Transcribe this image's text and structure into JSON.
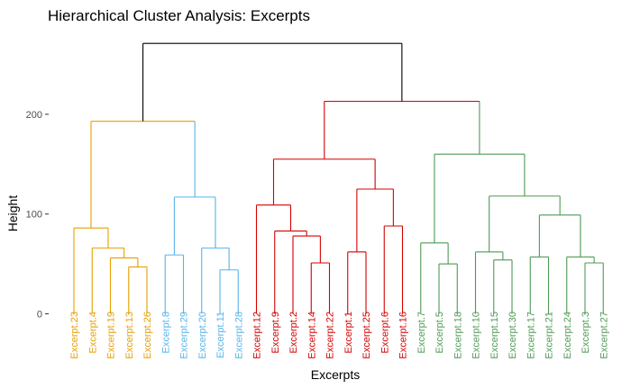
{
  "chart_data": {
    "type": "dendrogram",
    "title": "Hierarchical Cluster Analysis: Excerpts",
    "xlabel": "Excerpts",
    "ylabel": "Height",
    "ylim": [
      0,
      275
    ],
    "yticks": [
      0,
      100,
      200
    ],
    "grid": false,
    "legend": "none",
    "root_color": "#000000",
    "leaves": [
      "Excerpt.23",
      "Excerpt.4",
      "Excerpt.19",
      "Excerpt.13",
      "Excerpt.26",
      "Excerpt.8",
      "Excerpt.29",
      "Excerpt.20",
      "Excerpt.11",
      "Excerpt.28",
      "Excerpt.12",
      "Excerpt.9",
      "Excerpt.2",
      "Excerpt.14",
      "Excerpt.22",
      "Excerpt.1",
      "Excerpt.25",
      "Excerpt.6",
      "Excerpt.16",
      "Excerpt.7",
      "Excerpt.5",
      "Excerpt.18",
      "Excerpt.10",
      "Excerpt.15",
      "Excerpt.30",
      "Excerpt.17",
      "Excerpt.21",
      "Excerpt.24",
      "Excerpt.3",
      "Excerpt.27"
    ],
    "clusters": [
      {
        "color": "#e69f00",
        "leaves": [
          "Excerpt.23",
          "Excerpt.4",
          "Excerpt.19",
          "Excerpt.13",
          "Excerpt.26"
        ]
      },
      {
        "color": "#56b4e9",
        "leaves": [
          "Excerpt.8",
          "Excerpt.29",
          "Excerpt.20",
          "Excerpt.11",
          "Excerpt.28"
        ]
      },
      {
        "color": "#d40000",
        "leaves": [
          "Excerpt.12",
          "Excerpt.9",
          "Excerpt.2",
          "Excerpt.14",
          "Excerpt.22",
          "Excerpt.1",
          "Excerpt.25",
          "Excerpt.6",
          "Excerpt.16"
        ]
      },
      {
        "color": "#4e9a54",
        "leaves": [
          "Excerpt.7",
          "Excerpt.5",
          "Excerpt.18",
          "Excerpt.10",
          "Excerpt.15",
          "Excerpt.30",
          "Excerpt.17",
          "Excerpt.21",
          "Excerpt.24",
          "Excerpt.3",
          "Excerpt.27"
        ]
      }
    ],
    "merges": [
      {
        "id": "m1",
        "left": "Excerpt.13",
        "right": "Excerpt.26",
        "height": 47,
        "color": "#e69f00"
      },
      {
        "id": "m2",
        "left": "Excerpt.19",
        "right": "m1",
        "height": 56,
        "color": "#e69f00"
      },
      {
        "id": "m3",
        "left": "Excerpt.4",
        "right": "m2",
        "height": 66,
        "color": "#e69f00"
      },
      {
        "id": "m4",
        "left": "Excerpt.23",
        "right": "m3",
        "height": 86,
        "color": "#e69f00"
      },
      {
        "id": "m5",
        "left": "Excerpt.8",
        "right": "Excerpt.29",
        "height": 59,
        "color": "#56b4e9"
      },
      {
        "id": "m6",
        "left": "Excerpt.11",
        "right": "Excerpt.28",
        "height": 44,
        "color": "#56b4e9"
      },
      {
        "id": "m7",
        "left": "Excerpt.20",
        "right": "m6",
        "height": 66,
        "color": "#56b4e9"
      },
      {
        "id": "m8",
        "left": "m5",
        "right": "m7",
        "height": 117,
        "color": "#56b4e9"
      },
      {
        "id": "m9",
        "left": "m4",
        "right": "m8",
        "height": 193,
        "color": "#e69f00"
      },
      {
        "id": "m10",
        "left": "Excerpt.14",
        "right": "Excerpt.22",
        "height": 51,
        "color": "#d40000"
      },
      {
        "id": "m11",
        "left": "Excerpt.2",
        "right": "m10",
        "height": 78,
        "color": "#d40000"
      },
      {
        "id": "m12",
        "left": "Excerpt.9",
        "right": "m11",
        "height": 83,
        "color": "#d40000"
      },
      {
        "id": "m13",
        "left": "Excerpt.12",
        "right": "m12",
        "height": 109,
        "color": "#d40000"
      },
      {
        "id": "m14",
        "left": "Excerpt.1",
        "right": "Excerpt.25",
        "height": 62,
        "color": "#d40000"
      },
      {
        "id": "m15",
        "left": "Excerpt.6",
        "right": "Excerpt.16",
        "height": 88,
        "color": "#d40000"
      },
      {
        "id": "m16",
        "left": "m14",
        "right": "m15",
        "height": 125,
        "color": "#d40000"
      },
      {
        "id": "m17",
        "left": "m13",
        "right": "m16",
        "height": 155,
        "color": "#d40000"
      },
      {
        "id": "m18",
        "left": "Excerpt.5",
        "right": "Excerpt.18",
        "height": 50,
        "color": "#4e9a54"
      },
      {
        "id": "m19",
        "left": "Excerpt.7",
        "right": "m18",
        "height": 71,
        "color": "#4e9a54"
      },
      {
        "id": "m20",
        "left": "Excerpt.15",
        "right": "Excerpt.30",
        "height": 54,
        "color": "#4e9a54"
      },
      {
        "id": "m21",
        "left": "Excerpt.10",
        "right": "m20",
        "height": 62,
        "color": "#4e9a54"
      },
      {
        "id": "m22",
        "left": "Excerpt.3",
        "right": "Excerpt.27",
        "height": 51,
        "color": "#4e9a54"
      },
      {
        "id": "m23",
        "left": "Excerpt.24",
        "right": "m22",
        "height": 57,
        "color": "#4e9a54"
      },
      {
        "id": "m24",
        "left": "Excerpt.17",
        "right": "Excerpt.21",
        "height": 57,
        "color": "#4e9a54"
      },
      {
        "id": "m25",
        "left": "m24",
        "right": "m23",
        "height": 99,
        "color": "#4e9a54"
      },
      {
        "id": "m26",
        "left": "m21",
        "right": "m25",
        "height": 118,
        "color": "#4e9a54"
      },
      {
        "id": "m27",
        "left": "m19",
        "right": "m26",
        "height": 160,
        "color": "#4e9a54"
      },
      {
        "id": "m28",
        "left": "m17",
        "right": "m27",
        "height": 213,
        "color": "#d40000"
      },
      {
        "id": "m29",
        "left": "m9",
        "right": "m28",
        "height": 271,
        "color": "#000000"
      }
    ]
  }
}
